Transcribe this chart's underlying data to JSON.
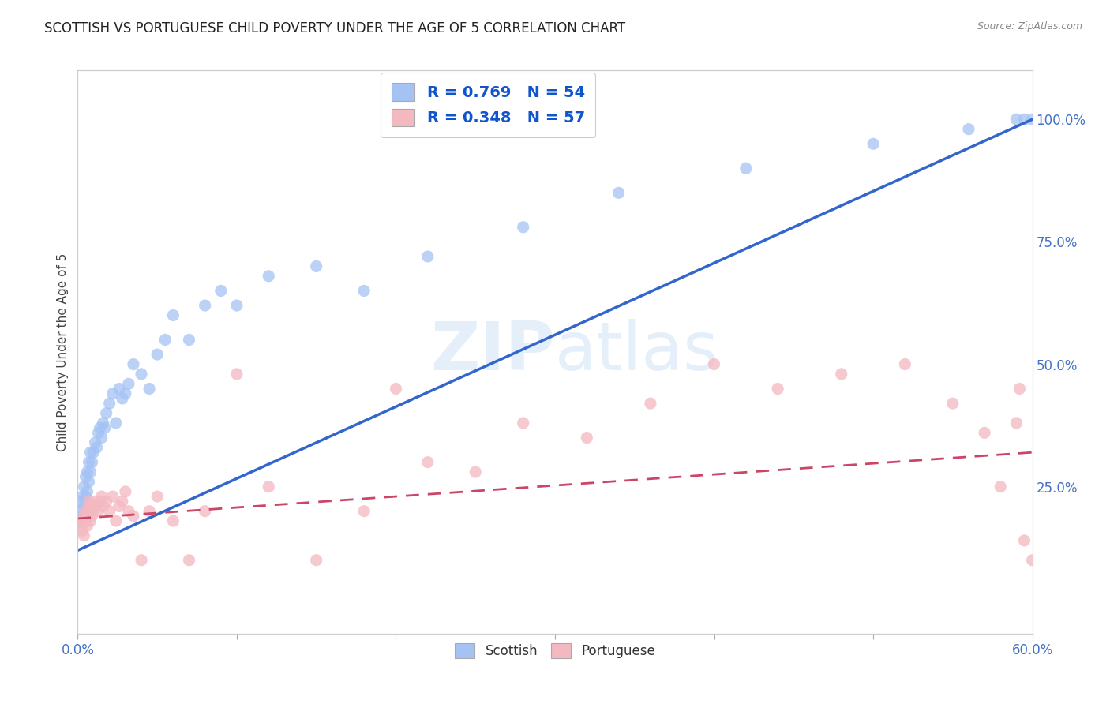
{
  "title": "SCOTTISH VS PORTUGUESE CHILD POVERTY UNDER THE AGE OF 5 CORRELATION CHART",
  "source": "Source: ZipAtlas.com",
  "ylabel": "Child Poverty Under the Age of 5",
  "xlim": [
    0.0,
    0.6
  ],
  "ylim": [
    -0.05,
    1.1
  ],
  "ytick_labels_right": [
    "100.0%",
    "75.0%",
    "50.0%",
    "25.0%"
  ],
  "ytick_vals_right": [
    1.0,
    0.75,
    0.5,
    0.25
  ],
  "scottish_R": 0.769,
  "scottish_N": 54,
  "portuguese_R": 0.348,
  "portuguese_N": 57,
  "scottish_color": "#a4c2f4",
  "portuguese_color": "#f4b8c1",
  "scottish_line_color": "#3366cc",
  "portuguese_line_color": "#cc4466",
  "legend_R_color": "#1155cc",
  "background_color": "#ffffff",
  "scottish_line_x0": 0.0,
  "scottish_line_y0": 0.12,
  "scottish_line_x1": 0.6,
  "scottish_line_y1": 1.0,
  "portuguese_line_x0": 0.0,
  "portuguese_line_y0": 0.185,
  "portuguese_line_x1": 0.6,
  "portuguese_line_y1": 0.32,
  "scottish_x": [
    0.001,
    0.002,
    0.002,
    0.003,
    0.003,
    0.004,
    0.004,
    0.005,
    0.005,
    0.006,
    0.006,
    0.007,
    0.007,
    0.008,
    0.008,
    0.009,
    0.01,
    0.011,
    0.012,
    0.013,
    0.014,
    0.015,
    0.016,
    0.017,
    0.018,
    0.02,
    0.022,
    0.024,
    0.026,
    0.028,
    0.03,
    0.032,
    0.035,
    0.04,
    0.045,
    0.05,
    0.055,
    0.06,
    0.07,
    0.08,
    0.09,
    0.1,
    0.12,
    0.15,
    0.18,
    0.22,
    0.28,
    0.34,
    0.42,
    0.5,
    0.56,
    0.59,
    0.595,
    0.6
  ],
  "scottish_y": [
    0.2,
    0.22,
    0.18,
    0.23,
    0.19,
    0.25,
    0.21,
    0.27,
    0.23,
    0.28,
    0.24,
    0.3,
    0.26,
    0.32,
    0.28,
    0.3,
    0.32,
    0.34,
    0.33,
    0.36,
    0.37,
    0.35,
    0.38,
    0.37,
    0.4,
    0.42,
    0.44,
    0.38,
    0.45,
    0.43,
    0.44,
    0.46,
    0.5,
    0.48,
    0.45,
    0.52,
    0.55,
    0.6,
    0.55,
    0.62,
    0.65,
    0.62,
    0.68,
    0.7,
    0.65,
    0.72,
    0.78,
    0.85,
    0.9,
    0.95,
    0.98,
    1.0,
    1.0,
    1.0
  ],
  "portuguese_x": [
    0.001,
    0.002,
    0.003,
    0.004,
    0.004,
    0.005,
    0.005,
    0.006,
    0.006,
    0.007,
    0.007,
    0.008,
    0.008,
    0.009,
    0.01,
    0.011,
    0.012,
    0.013,
    0.014,
    0.015,
    0.016,
    0.018,
    0.02,
    0.022,
    0.024,
    0.026,
    0.028,
    0.03,
    0.032,
    0.035,
    0.04,
    0.045,
    0.05,
    0.06,
    0.07,
    0.08,
    0.1,
    0.12,
    0.15,
    0.18,
    0.2,
    0.22,
    0.25,
    0.28,
    0.32,
    0.36,
    0.4,
    0.44,
    0.48,
    0.52,
    0.55,
    0.57,
    0.58,
    0.59,
    0.592,
    0.595,
    0.6
  ],
  "portuguese_y": [
    0.17,
    0.18,
    0.16,
    0.19,
    0.15,
    0.18,
    0.2,
    0.17,
    0.19,
    0.2,
    0.22,
    0.18,
    0.21,
    0.19,
    0.2,
    0.22,
    0.21,
    0.2,
    0.22,
    0.23,
    0.21,
    0.22,
    0.2,
    0.23,
    0.18,
    0.21,
    0.22,
    0.24,
    0.2,
    0.19,
    0.1,
    0.2,
    0.23,
    0.18,
    0.1,
    0.2,
    0.48,
    0.25,
    0.1,
    0.2,
    0.45,
    0.3,
    0.28,
    0.38,
    0.35,
    0.42,
    0.5,
    0.45,
    0.48,
    0.5,
    0.42,
    0.36,
    0.25,
    0.38,
    0.45,
    0.14,
    0.1
  ]
}
